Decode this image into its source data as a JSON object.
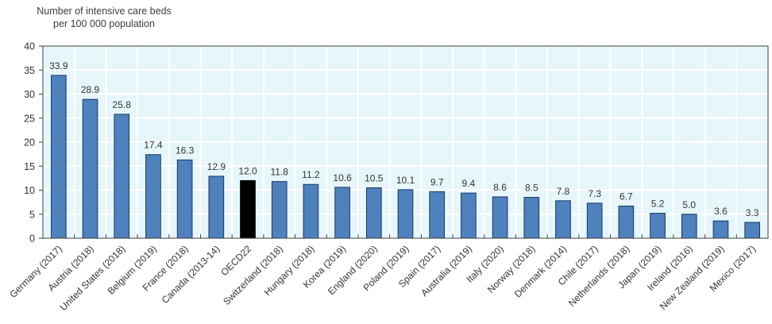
{
  "title": {
    "line1": "Number of intensive care beds",
    "line2": "per 100 000 population"
  },
  "chart_data": {
    "type": "bar",
    "title": "Number of intensive care beds per 100 000 population",
    "categories": [
      "Germany (2017)",
      "Austria (2018)",
      "United States (2018)",
      "Belgium (2019)",
      "France (2018)",
      "Canada (2013-14)",
      "OECD22",
      "Switzerland (2018)",
      "Hungary (2018)",
      "Korea (2019)",
      "England (2020)",
      "Poland (2019)",
      "Spain (2017)",
      "Australia (2019)",
      "Italy (2020)",
      "Norway (2018)",
      "Denmark (2014)",
      "Chile (2017)",
      "Netherlands (2018)",
      "Japan (2019)",
      "Ireland (2016)",
      "New Zealand (2019)",
      "Mexico (2017)"
    ],
    "values": [
      33.9,
      28.9,
      25.8,
      17.4,
      16.3,
      12.9,
      12.0,
      11.8,
      11.2,
      10.6,
      10.5,
      10.1,
      9.7,
      9.4,
      8.6,
      8.5,
      7.8,
      7.3,
      6.7,
      5.2,
      5.0,
      3.6,
      3.3
    ],
    "highlight_index": 6,
    "highlight_category": "OECD22",
    "value_labels": true,
    "grid": true,
    "legend": "none",
    "ylim": [
      0,
      40
    ],
    "ytick_step": 5,
    "xlabel": "",
    "ylabel": "Number of intensive care beds per 100 000 population",
    "colors": {
      "bar": "#4f81bd",
      "bar_border": "#17375e",
      "highlight": "#000000",
      "plot_background": "#e7f6fb",
      "gridline": "#ffffff",
      "axis": "#3f3f3f",
      "text": "#333333"
    }
  }
}
